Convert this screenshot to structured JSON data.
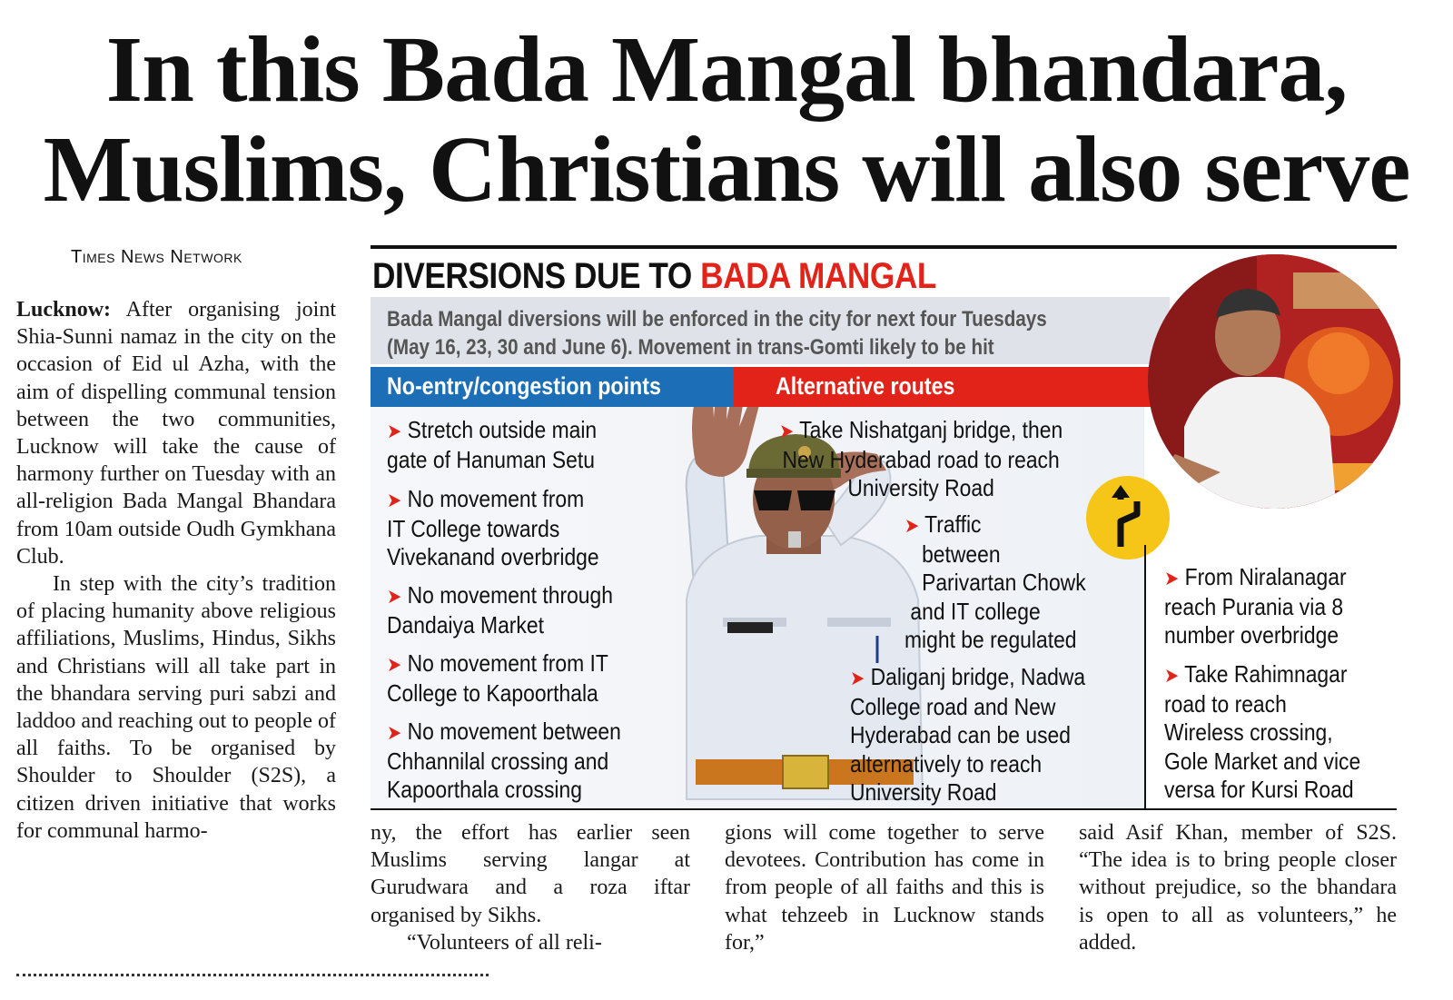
{
  "headline": {
    "line1": "In this Bada Mangal bhandara,",
    "line2": "Muslims, Christians will also serve"
  },
  "byline": "Times News Network",
  "article": {
    "place": "Lucknow:",
    "p1": "After organising joint Shia-Sunni namaz in the city on the occasion of Eid ul Azha, with the aim of dispelling communal tension between the two communities, Lucknow will take the cause of harmony further on Tuesday with an all-religion Bada Mangal Bhandara from 10am outside Oudh Gymkhana Club.",
    "p2": "In step with the city’s tradition of placing humanity above religious affiliations, Muslims, Hindus, Sikhs and Christians will all take part in the bhandara serving puri sabzi and laddoo and reaching out to people of all faiths. To be organised by Shoulder to Shoulder (S2S), a citizen driven initiative that works for communal harmo-",
    "col2_p1": "ny, the effort has earlier seen Muslims serving langar at Gurudwara and a roza iftar organised by Sikhs.",
    "col2_p2": "“Volunteers of all reli-",
    "col3_p1": "gions will come together to serve devotees. Contribution has come in from people of all faiths and this is what tehzeeb in Lucknow stands for,”",
    "col4_p1": "said Asif Khan, member of S2S. “The idea is to bring people closer without prejudice, so the bhandara is open to all as volunteers,” he added."
  },
  "infographic": {
    "title_black": "DIVERSIONS DUE TO ",
    "title_red": "BADA MANGAL",
    "intro_line1": "Bada Mangal diversions will be enforced in the city for next four Tuesdays",
    "intro_line2": "(May 16, 23, 30 and June 6). Movement in trans-Gomti likely to be hit",
    "no_entry_label": "No-entry/congestion points",
    "alt_routes_label": "Alternative routes",
    "no_entry_points": [
      [
        "Stretch outside main",
        "gate of Hanuman Setu"
      ],
      [
        "No movement from",
        "IT College towards",
        "Vivekanand overbridge"
      ],
      [
        "No movement through",
        "Dandaiya Market"
      ],
      [
        "No movement from IT",
        "College to Kapoorthala"
      ],
      [
        "No movement between",
        "Chhannilal crossing and",
        "Kapoorthala crossing"
      ]
    ],
    "alt_routes": [
      [
        "Take Nishatganj bridge, then",
        "New Hyderabad road to reach",
        "University Road"
      ],
      [
        "Traffic",
        "between",
        "Parivartan Chowk",
        "and IT college",
        "might be regulated"
      ],
      [
        "Daliganj bridge, Nadwa",
        "College road and New",
        "Hyderabad can be used",
        "alternatively to reach",
        "University Road"
      ],
      [
        "From Niralanagar",
        "reach Purania via 8",
        "number overbridge"
      ],
      [
        "Take Rahimnagar",
        "road to reach",
        "Wireless crossing,",
        "Gole Market and vice",
        "versa for Kursi Road"
      ]
    ],
    "arrow_glyph": "➤",
    "colors": {
      "red": "#e2231a",
      "blue": "#1c6fb7",
      "band": "#dfe2e8",
      "sign": "#f5c518"
    }
  }
}
